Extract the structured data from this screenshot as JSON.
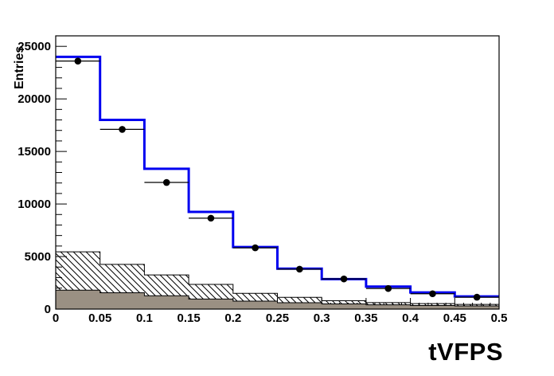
{
  "window": {
    "background_color": "#ffffff",
    "plot_type": "root-style-histogram"
  },
  "chart_data": {
    "type": "bar",
    "subtype": "step-histogram-overlay",
    "title": "",
    "xlabel": "tVFPS",
    "ylabel": "Entries",
    "xlim": [
      0,
      0.5
    ],
    "ylim": [
      0,
      26000
    ],
    "grid": false,
    "legend": "none",
    "bin_edges": [
      0,
      0.05,
      0.1,
      0.15,
      0.2,
      0.25,
      0.3,
      0.35,
      0.4,
      0.45,
      0.5
    ],
    "x_ticks": {
      "major_step": 0.05,
      "minor_step": 0.01,
      "labels": [
        "0",
        "0.05",
        "0.1",
        "0.15",
        "0.2",
        "0.25",
        "0.3",
        "0.35",
        "0.4",
        "0.45",
        "0.5"
      ]
    },
    "y_ticks": {
      "major_step": 5000,
      "minor_step": 1000,
      "labels": [
        "0",
        "5000",
        "10000",
        "15000",
        "20000",
        "25000"
      ]
    },
    "series": [
      {
        "name": "total-histogram",
        "style": "step-line",
        "color": "#0000f0",
        "line_width": 3,
        "values": [
          24000,
          18000,
          13350,
          9250,
          5900,
          3850,
          2850,
          2140,
          1580,
          1200
        ]
      },
      {
        "name": "hatched-background",
        "style": "step-hatched",
        "hatch": "\\",
        "outline_color": "#000000",
        "values": [
          5450,
          4250,
          3250,
          2350,
          1500,
          1120,
          800,
          620,
          520,
          450
        ]
      },
      {
        "name": "solid-background",
        "style": "step-filled",
        "fill_color": "#9a9083",
        "outline_color": "#000000",
        "values": [
          1800,
          1550,
          1270,
          960,
          760,
          610,
          490,
          410,
          340,
          300
        ]
      },
      {
        "name": "data-points",
        "style": "scatter-errorbar",
        "marker": "filled-circle",
        "color": "#000000",
        "x": [
          0.025,
          0.075,
          0.125,
          0.175,
          0.225,
          0.275,
          0.325,
          0.375,
          0.425,
          0.475
        ],
        "values": [
          23600,
          17100,
          12050,
          8650,
          5830,
          3800,
          2870,
          1960,
          1460,
          1130
        ]
      }
    ]
  }
}
